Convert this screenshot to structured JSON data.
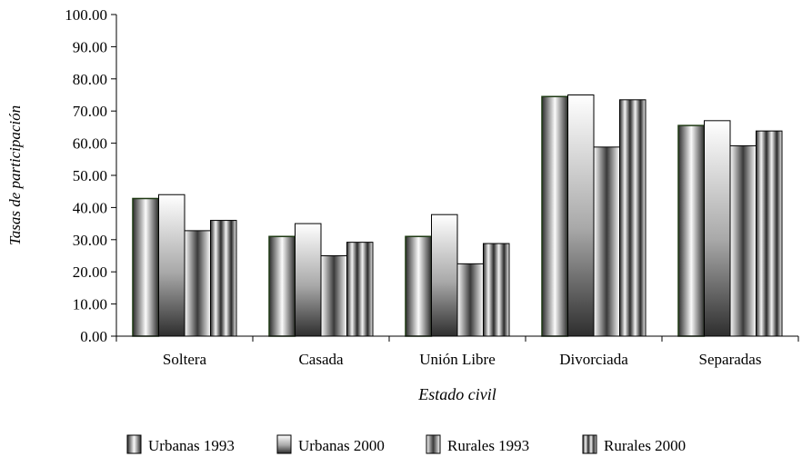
{
  "chart_data": {
    "type": "bar",
    "title": "",
    "xlabel": "Estado civil",
    "ylabel": "Tasas de participación",
    "categories": [
      "Soltera",
      "Casada",
      "Unión  Libre",
      "Divorciada",
      "Separadas"
    ],
    "ylim": [
      0,
      100
    ],
    "yticks": [
      "0.00",
      "10.00",
      "20.00",
      "30.00",
      "40.00",
      "50.00",
      "60.00",
      "70.00",
      "80.00",
      "90.00",
      "100.00"
    ],
    "grid": false,
    "legend_position": "bottom",
    "series": [
      {
        "name": "Urbanas 1993",
        "values": [
          42.8,
          31.0,
          31.0,
          74.5,
          65.5
        ],
        "pattern": "center-light"
      },
      {
        "name": "Urbanas 2000",
        "values": [
          44.0,
          35.0,
          37.8,
          75.0,
          67.0
        ],
        "pattern": "top-light"
      },
      {
        "name": "Rurales 1993",
        "values": [
          32.8,
          25.0,
          22.5,
          58.8,
          59.2
        ],
        "pattern": "center-dark"
      },
      {
        "name": "Rurales 2000",
        "values": [
          36.0,
          29.2,
          28.8,
          73.5,
          63.8
        ],
        "pattern": "stripes"
      }
    ]
  }
}
